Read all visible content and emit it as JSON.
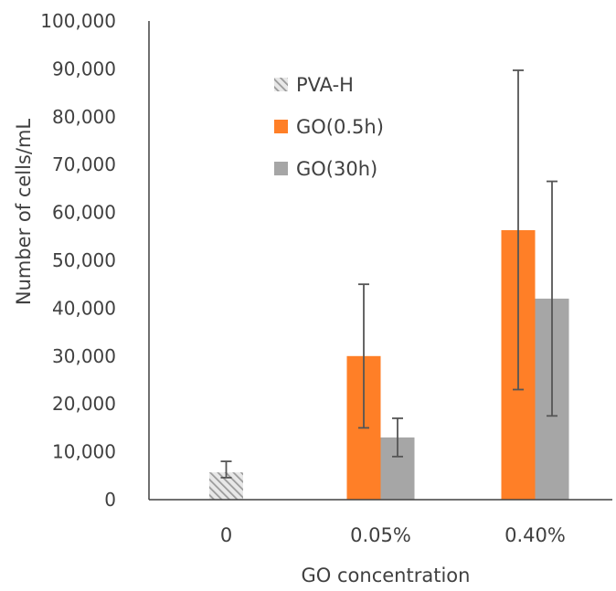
{
  "chart_data": {
    "type": "bar",
    "title": "",
    "xlabel": "GO concentration",
    "ylabel": "Number of cells/mL",
    "ylim": [
      0,
      100000
    ],
    "yticks": [
      0,
      10000,
      20000,
      30000,
      40000,
      50000,
      60000,
      70000,
      80000,
      90000,
      100000
    ],
    "ytick_labels": [
      "0",
      "10,000",
      "20,000",
      "30,000",
      "40,000",
      "50,000",
      "60,000",
      "70,000",
      "80,000",
      "90,000",
      "100,000"
    ],
    "categories": [
      "0",
      "0.05%",
      "0.40%"
    ],
    "grid": false,
    "legend_position": "top-left",
    "series": [
      {
        "name": "PVA-H",
        "color": "#a6a6a6",
        "pattern": "diagonal-hatch",
        "values": [
          5700,
          null,
          null
        ],
        "error_low": [
          4600,
          null,
          null
        ],
        "error_high": [
          8000,
          null,
          null
        ]
      },
      {
        "name": "GO(0.5h)",
        "color": "#ff7f27",
        "pattern": "solid",
        "values": [
          null,
          30000,
          56300
        ],
        "error_low": [
          null,
          15000,
          23000
        ],
        "error_high": [
          null,
          45000,
          89700
        ]
      },
      {
        "name": "GO(30h)",
        "color": "#a6a6a6",
        "pattern": "solid",
        "values": [
          null,
          13000,
          42000
        ],
        "error_low": [
          null,
          9000,
          17500
        ],
        "error_high": [
          null,
          17000,
          66500
        ]
      }
    ]
  }
}
